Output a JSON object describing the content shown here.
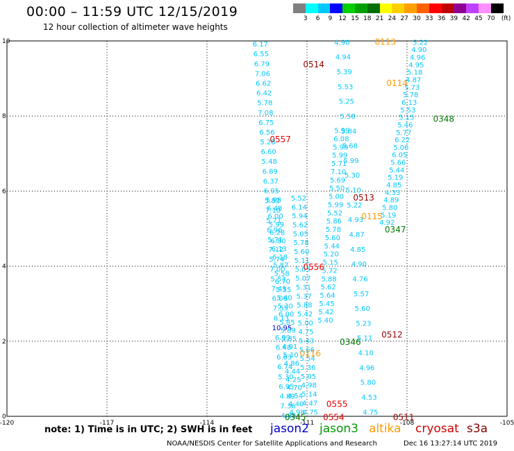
{
  "header": {
    "title": "00:00 – 11:59 UTC 12/15/2019",
    "subtitle": "12 hour collection of altimeter wave heights"
  },
  "colorbar": {
    "unit_label": "(ft)",
    "bins": [
      {
        "label": "3",
        "color": "#808080"
      },
      {
        "label": "6",
        "color": "#00ffff"
      },
      {
        "label": "9",
        "color": "#00c8ff"
      },
      {
        "label": "12",
        "color": "#0000ff"
      },
      {
        "label": "15",
        "color": "#00d000"
      },
      {
        "label": "18",
        "color": "#00a000"
      },
      {
        "label": "21",
        "color": "#007000"
      },
      {
        "label": "24",
        "color": "#ffff00"
      },
      {
        "label": "27",
        "color": "#ffd000"
      },
      {
        "label": "30",
        "color": "#ffa000"
      },
      {
        "label": "33",
        "color": "#ff6000"
      },
      {
        "label": "36",
        "color": "#ff0000"
      },
      {
        "label": "39",
        "color": "#c00000"
      },
      {
        "label": "42",
        "color": "#900090"
      },
      {
        "label": "45",
        "color": "#c040ff"
      },
      {
        "label": "70",
        "color": "#ff90ff"
      },
      {
        "label": "",
        "color": "#000000"
      }
    ]
  },
  "axes": {
    "x_ticks": [
      "-120",
      "-117",
      "-114",
      "-111",
      "-108",
      "-105"
    ],
    "y_ticks": [
      "0",
      "2",
      "4",
      "6",
      "8",
      "10"
    ]
  },
  "chart_data": {
    "type": "map",
    "projection": "lon/lat",
    "xlim": [
      -120,
      -105
    ],
    "ylim": [
      0,
      10
    ],
    "grid": true,
    "pass_labels": [
      {
        "text": "0113",
        "lon": -108.65,
        "lat": 9.9,
        "color": "#ff9900"
      },
      {
        "text": "0514",
        "lon": -110.8,
        "lat": 9.3,
        "color": "#990000"
      },
      {
        "text": "0114",
        "lon": -108.3,
        "lat": 8.8,
        "color": "#ff9900"
      },
      {
        "text": "0348",
        "lon": -106.9,
        "lat": 7.85,
        "color": "#007700"
      },
      {
        "text": "0557",
        "lon": -111.8,
        "lat": 7.3,
        "color": "#ee0000"
      },
      {
        "text": "0513",
        "lon": -109.3,
        "lat": 5.75,
        "color": "#990000"
      },
      {
        "text": "0115",
        "lon": -109.05,
        "lat": 5.25,
        "color": "#ff9900"
      },
      {
        "text": "0347",
        "lon": -108.35,
        "lat": 4.9,
        "color": "#007700"
      },
      {
        "text": "0556",
        "lon": -110.8,
        "lat": 3.9,
        "color": "#ee0000"
      },
      {
        "text": "0512",
        "lon": -108.45,
        "lat": 2.1,
        "color": "#990000"
      },
      {
        "text": "0346",
        "lon": -109.7,
        "lat": 1.9,
        "color": "#007700"
      },
      {
        "text": "0116",
        "lon": -110.9,
        "lat": 1.6,
        "color": "#ff9900"
      },
      {
        "text": "0555",
        "lon": -110.1,
        "lat": 0.25,
        "color": "#ee0000"
      },
      {
        "text": "0345",
        "lon": -111.35,
        "lat": -0.1,
        "color": "#007700"
      },
      {
        "text": "0554",
        "lon": -110.2,
        "lat": -0.1,
        "color": "#ee0000"
      },
      {
        "text": "0511",
        "lon": -108.1,
        "lat": -0.1,
        "color": "#990000"
      }
    ],
    "tracks": [
      {
        "name": "track_a",
        "lon_start": -112.4,
        "lat_start": 9.85,
        "lon_end": -111.55,
        "lat_end": -0.05,
        "values": [
          "6.17",
          "6.55",
          "6.79",
          "7.06",
          "6.62",
          "6.42",
          "5.78",
          "7.08",
          "6.75",
          "6.56",
          "5.28",
          "6.60",
          "5.48",
          "6.89",
          "6.37",
          "6.95",
          "5.82",
          "7.10",
          "5.71",
          "6.96",
          "5.71",
          "7.12",
          "5.74",
          "7.00",
          "5.53",
          "7.45",
          "6.06",
          "7.55",
          "6.13",
          "10.95",
          "6.99",
          "6.48",
          "6.63",
          "6.74",
          "5.30",
          "6.95",
          "4.89",
          "7.36",
          "4.85"
        ]
      },
      {
        "name": "track_b",
        "lon_start": -112.0,
        "lat_start": 5.7,
        "lon_end": -111.3,
        "lat_end": 0.05,
        "values": [
          "5.98",
          "6.48",
          "6.00",
          "5.99",
          "6.28",
          "6.80",
          "6.13",
          "6.18",
          "5.87",
          "5.58",
          "6.70",
          "5.55",
          "5.40",
          "5.30",
          "6.00",
          "5.85",
          "5.89",
          "5.85",
          "4.91",
          "5.10",
          "4.86",
          "4.44",
          "4.25",
          "4.70",
          "4.54",
          "4.40",
          "4.98"
        ]
      },
      {
        "name": "track_c",
        "lon_start": -111.25,
        "lat_start": 5.75,
        "lon_end": -110.9,
        "lat_end": 0.05,
        "values": [
          "5.52",
          "6.14",
          "5.94",
          "5.62",
          "5.05",
          "5.78",
          "5.60",
          "5.11",
          "5.03",
          "5.07",
          "5.31",
          "5.37",
          "5.88",
          "5.42",
          "5.00",
          "4.75",
          "5.43",
          "5.66",
          "5.54",
          "5.36",
          "5.05",
          "4.98",
          "5.14",
          "4.47",
          "4.75"
        ]
      },
      {
        "name": "track_d",
        "lon_start": -109.95,
        "lat_start": 7.55,
        "lon_end": -110.45,
        "lat_end": 2.5,
        "values": [
          "5.99",
          "6.08",
          "5.99",
          "5.99",
          "5.71",
          "7.10",
          "5.69",
          "5.50",
          "5.00",
          "5.99",
          "5.52",
          "5.86",
          "5.78",
          "5.60",
          "5.44",
          "5.20",
          "5.15",
          "5.72",
          "5.88",
          "5.62",
          "5.64",
          "5.45",
          "5.42",
          "5.40"
        ]
      },
      {
        "name": "track_e",
        "lon_start": -109.95,
        "lat_start": 9.9,
        "lon_end": -109.1,
        "lat_end": 0.05,
        "values": [
          "4.90",
          "4.94",
          "5.39",
          "5.53",
          "5.25",
          "5.58",
          "5.84",
          "5.68",
          "5.99",
          "5.30",
          "5.10",
          "5.22",
          "4.93",
          "4.87",
          "4.85",
          "4.90",
          "4.76",
          "5.57",
          "5.60",
          "5.23",
          "5.11",
          "4.10",
          "4.96",
          "5.80",
          "4.53",
          "4.75"
        ]
      },
      {
        "name": "track_f",
        "lon_start": -107.6,
        "lat_start": 9.9,
        "lon_end": -108.6,
        "lat_end": 5.1,
        "values": [
          "5.22",
          "4.90",
          "4.96",
          "4.95",
          "5.18",
          "4.87",
          "5.73",
          "5.78",
          "6.13",
          "5.53",
          "5.15",
          "5.46",
          "5.77",
          "6.22",
          "5.06",
          "6.05",
          "5.66",
          "5.44",
          "5.19",
          "4.85",
          "4.33",
          "4.89",
          "5.80",
          "5.19",
          "4.92"
        ]
      }
    ]
  },
  "notes": {
    "note_text": "note:  1) Time is in UTC; 2) SWH is in feet"
  },
  "legend": {
    "satellites": [
      {
        "name": "jason2",
        "color": "#0000cc"
      },
      {
        "name": "jason3",
        "color": "#009900"
      },
      {
        "name": "altika",
        "color": "#ff9900"
      },
      {
        "name": "cryosat",
        "color": "#cc0000"
      },
      {
        "name": "s3a",
        "color": "#880000"
      }
    ]
  },
  "footer": {
    "credit": "NOAA/NESDIS Center for Satellite Applications and Research",
    "timestamp": "Dec 16 13:27:14 UTC 2019"
  }
}
